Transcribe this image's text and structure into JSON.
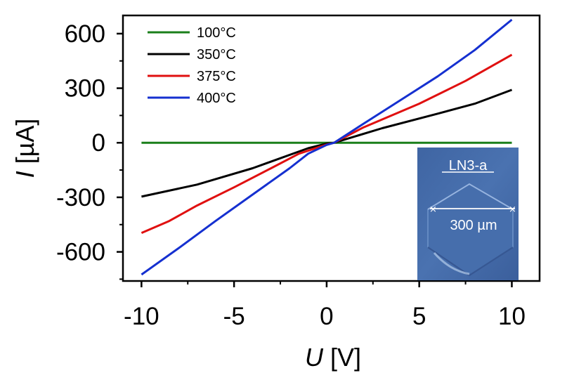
{
  "chart_data": {
    "type": "line",
    "title": "",
    "xlabel_var": "U",
    "xlabel_unit": "[V]",
    "ylabel_var": "I",
    "ylabel_unit": "[µA]",
    "xlim": [
      -11,
      11.5
    ],
    "ylim": [
      -760,
      700
    ],
    "xticks": [
      -10,
      -5,
      0,
      5,
      10
    ],
    "xtick_labels": [
      "-10",
      "-5",
      "0",
      "5",
      "10"
    ],
    "yticks": [
      -600,
      -300,
      0,
      300,
      600
    ],
    "ytick_labels": [
      "-600",
      "-300",
      "0",
      "300",
      "600"
    ],
    "legend_position": "top-left",
    "series": [
      {
        "name": "100°C",
        "color": "#1a7f1a",
        "x": [
          -10,
          -5,
          0,
          5,
          10
        ],
        "y": [
          0,
          0,
          0,
          0,
          0
        ]
      },
      {
        "name": "350°C",
        "color": "#000000",
        "x": [
          -10,
          -7,
          -4,
          -1,
          0,
          0.4,
          3,
          6,
          8,
          10
        ],
        "y": [
          -296,
          -230,
          -140,
          -30,
          -5,
          0,
          80,
          160,
          215,
          291
        ]
      },
      {
        "name": "375°C",
        "color": "#e01010",
        "x": [
          -10,
          -8.5,
          -7,
          -5,
          -3,
          -1.5,
          0,
          0.4,
          2,
          5,
          7.5,
          10
        ],
        "y": [
          -496,
          -430,
          -345,
          -245,
          -140,
          -60,
          -10,
          0,
          85,
          215,
          340,
          484
        ]
      },
      {
        "name": "400°C",
        "color": "#1530d0",
        "x": [
          -10,
          -8,
          -6,
          -4,
          -2,
          -1,
          0,
          0.4,
          2,
          4,
          6,
          8,
          10
        ],
        "y": [
          -725,
          -580,
          -430,
          -285,
          -140,
          -60,
          -12,
          0,
          105,
          235,
          365,
          510,
          677
        ]
      }
    ],
    "inset": {
      "label": "LN3-a",
      "scale_label": "300 µm",
      "description_color": "#4a6ea8"
    }
  }
}
